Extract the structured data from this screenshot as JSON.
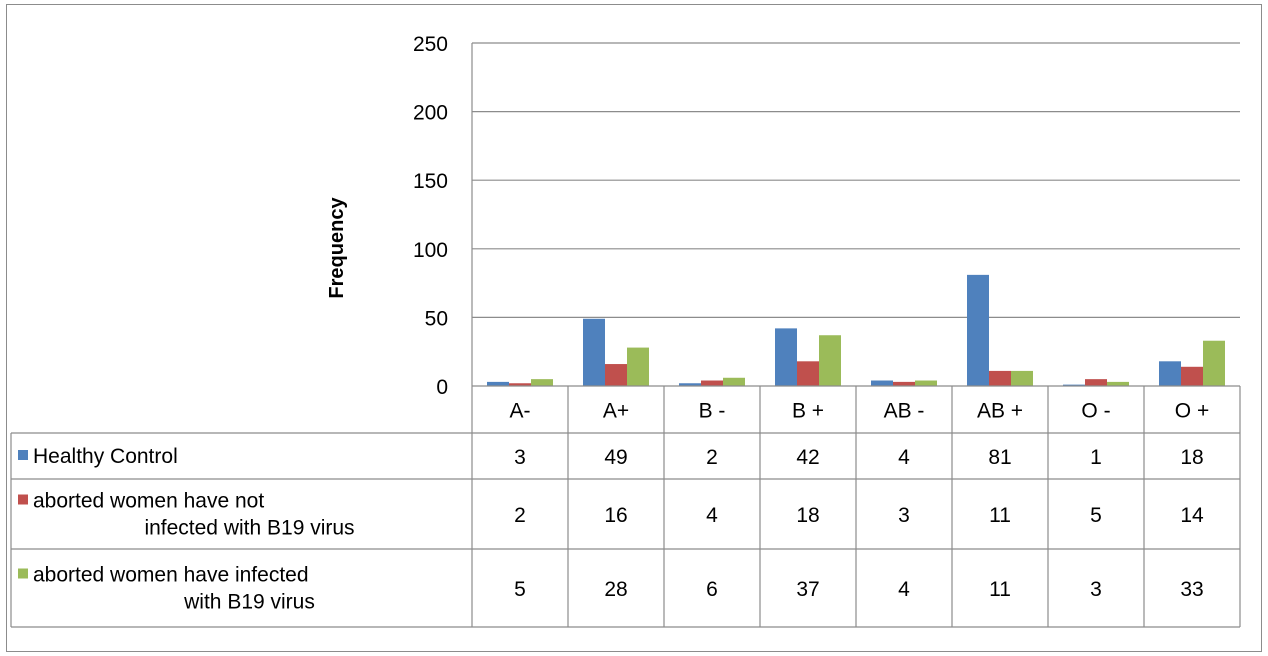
{
  "chart_data": {
    "type": "bar",
    "title": "",
    "xlabel": "",
    "ylabel": "Frequency",
    "ylim": [
      0,
      250
    ],
    "yticks": [
      0,
      50,
      100,
      150,
      200,
      250
    ],
    "grid": true,
    "legend": "data-table-left",
    "categories": [
      "A-",
      "A+",
      "B -",
      "B +",
      "AB -",
      "AB +",
      "O -",
      "O +"
    ],
    "series": [
      {
        "name": "Healthy Control",
        "name_lines": [
          "Healthy Control"
        ],
        "color": "#4f81bd",
        "values": [
          3,
          49,
          2,
          42,
          4,
          81,
          1,
          18
        ]
      },
      {
        "name": "aborted women have not infected with B19 virus",
        "name_lines": [
          "aborted women have not",
          "infected with B19 virus"
        ],
        "color": "#c0504d",
        "values": [
          2,
          16,
          4,
          18,
          3,
          11,
          5,
          14
        ]
      },
      {
        "name": "aborted women have infected with B19 virus",
        "name_lines": [
          "aborted women have infected",
          "with B19 virus"
        ],
        "color": "#9bbb59",
        "values": [
          5,
          28,
          6,
          37,
          4,
          11,
          3,
          33
        ]
      }
    ]
  }
}
